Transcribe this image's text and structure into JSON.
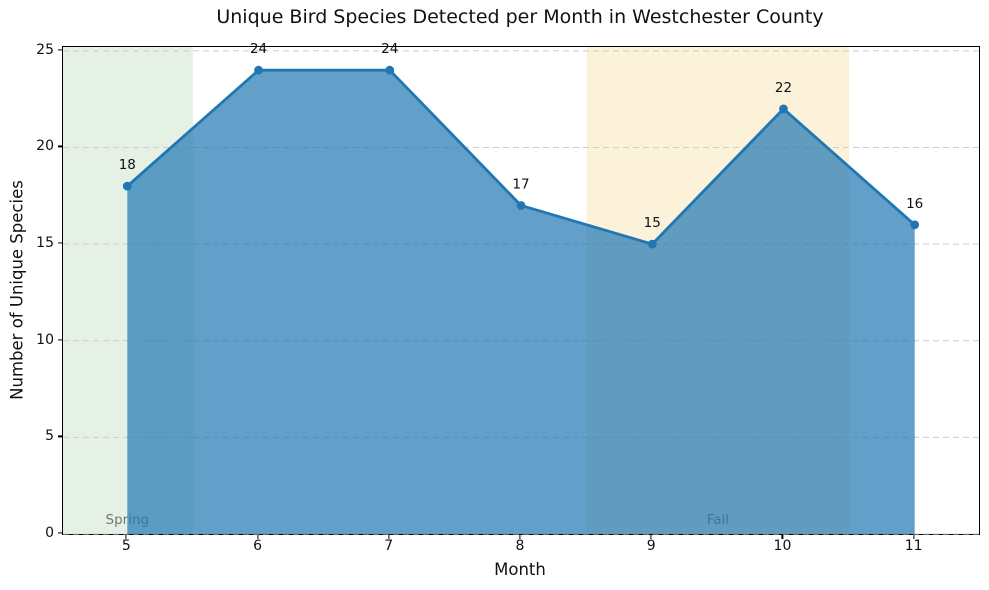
{
  "chart_data": {
    "type": "area",
    "title": "Unique Bird Species Detected per Month in Westchester County",
    "xlabel": "Month",
    "ylabel": "Number of Unique Species",
    "x": [
      5,
      6,
      7,
      8,
      9,
      10,
      11
    ],
    "values": [
      18,
      24,
      24,
      17,
      15,
      22,
      16
    ],
    "point_labels": [
      "18",
      "24",
      "24",
      "17",
      "15",
      "22",
      "16"
    ],
    "xticks": [
      5,
      6,
      7,
      8,
      9,
      10,
      11
    ],
    "yticks": [
      0,
      5,
      10,
      15,
      20,
      25
    ],
    "xlim": [
      4.51,
      11.49
    ],
    "ylim": [
      0,
      25.2
    ],
    "grid": {
      "axis": "y",
      "style": "dashed",
      "color": "#cccccc"
    },
    "line_color": "#1f77b4",
    "fill_color": "#1f77b4",
    "fill_opacity": 0.7,
    "marker": "circle",
    "annotation_color": "#111111",
    "legend": "none",
    "regions": [
      {
        "label": "Spring",
        "x_start": 4.51,
        "x_end": 5.5,
        "color": "#e5f1e4",
        "label_x": 5.0,
        "label_color": "#707a74"
      },
      {
        "label": "Fall",
        "x_start": 8.5,
        "x_end": 10.5,
        "color": "#fcf2d9",
        "label_x": 9.5,
        "label_color": "#707a74"
      }
    ]
  }
}
